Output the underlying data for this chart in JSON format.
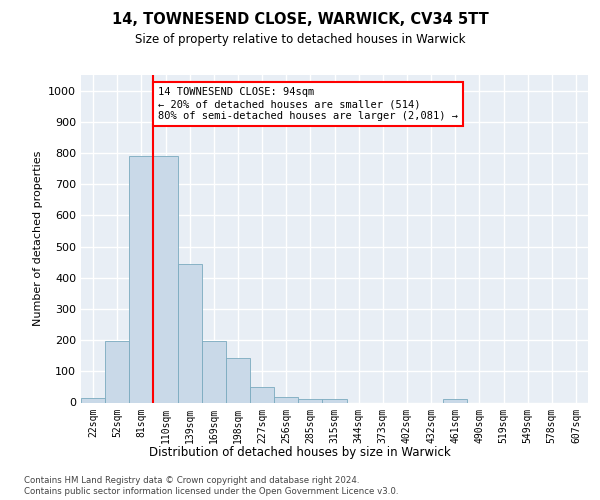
{
  "title": "14, TOWNESEND CLOSE, WARWICK, CV34 5TT",
  "subtitle": "Size of property relative to detached houses in Warwick",
  "xlabel": "Distribution of detached houses by size in Warwick",
  "ylabel": "Number of detached properties",
  "bar_labels": [
    "22sqm",
    "52sqm",
    "81sqm",
    "110sqm",
    "139sqm",
    "169sqm",
    "198sqm",
    "227sqm",
    "256sqm",
    "285sqm",
    "315sqm",
    "344sqm",
    "373sqm",
    "402sqm",
    "432sqm",
    "461sqm",
    "490sqm",
    "519sqm",
    "549sqm",
    "578sqm",
    "607sqm"
  ],
  "bar_values": [
    15,
    197,
    790,
    790,
    443,
    197,
    143,
    50,
    18,
    10,
    10,
    0,
    0,
    0,
    0,
    10,
    0,
    0,
    0,
    0,
    0
  ],
  "bar_color": "#c9d9e8",
  "bar_edge_color": "#7aaabf",
  "vline_x": 2.5,
  "vline_color": "red",
  "annotation_text": "14 TOWNESEND CLOSE: 94sqm\n← 20% of detached houses are smaller (514)\n80% of semi-detached houses are larger (2,081) →",
  "annotation_box_color": "white",
  "annotation_box_edge_color": "red",
  "ylim": [
    0,
    1050
  ],
  "yticks": [
    0,
    100,
    200,
    300,
    400,
    500,
    600,
    700,
    800,
    900,
    1000
  ],
  "background_color": "#e8eef5",
  "grid_color": "white",
  "footer_line1": "Contains HM Land Registry data © Crown copyright and database right 2024.",
  "footer_line2": "Contains public sector information licensed under the Open Government Licence v3.0."
}
